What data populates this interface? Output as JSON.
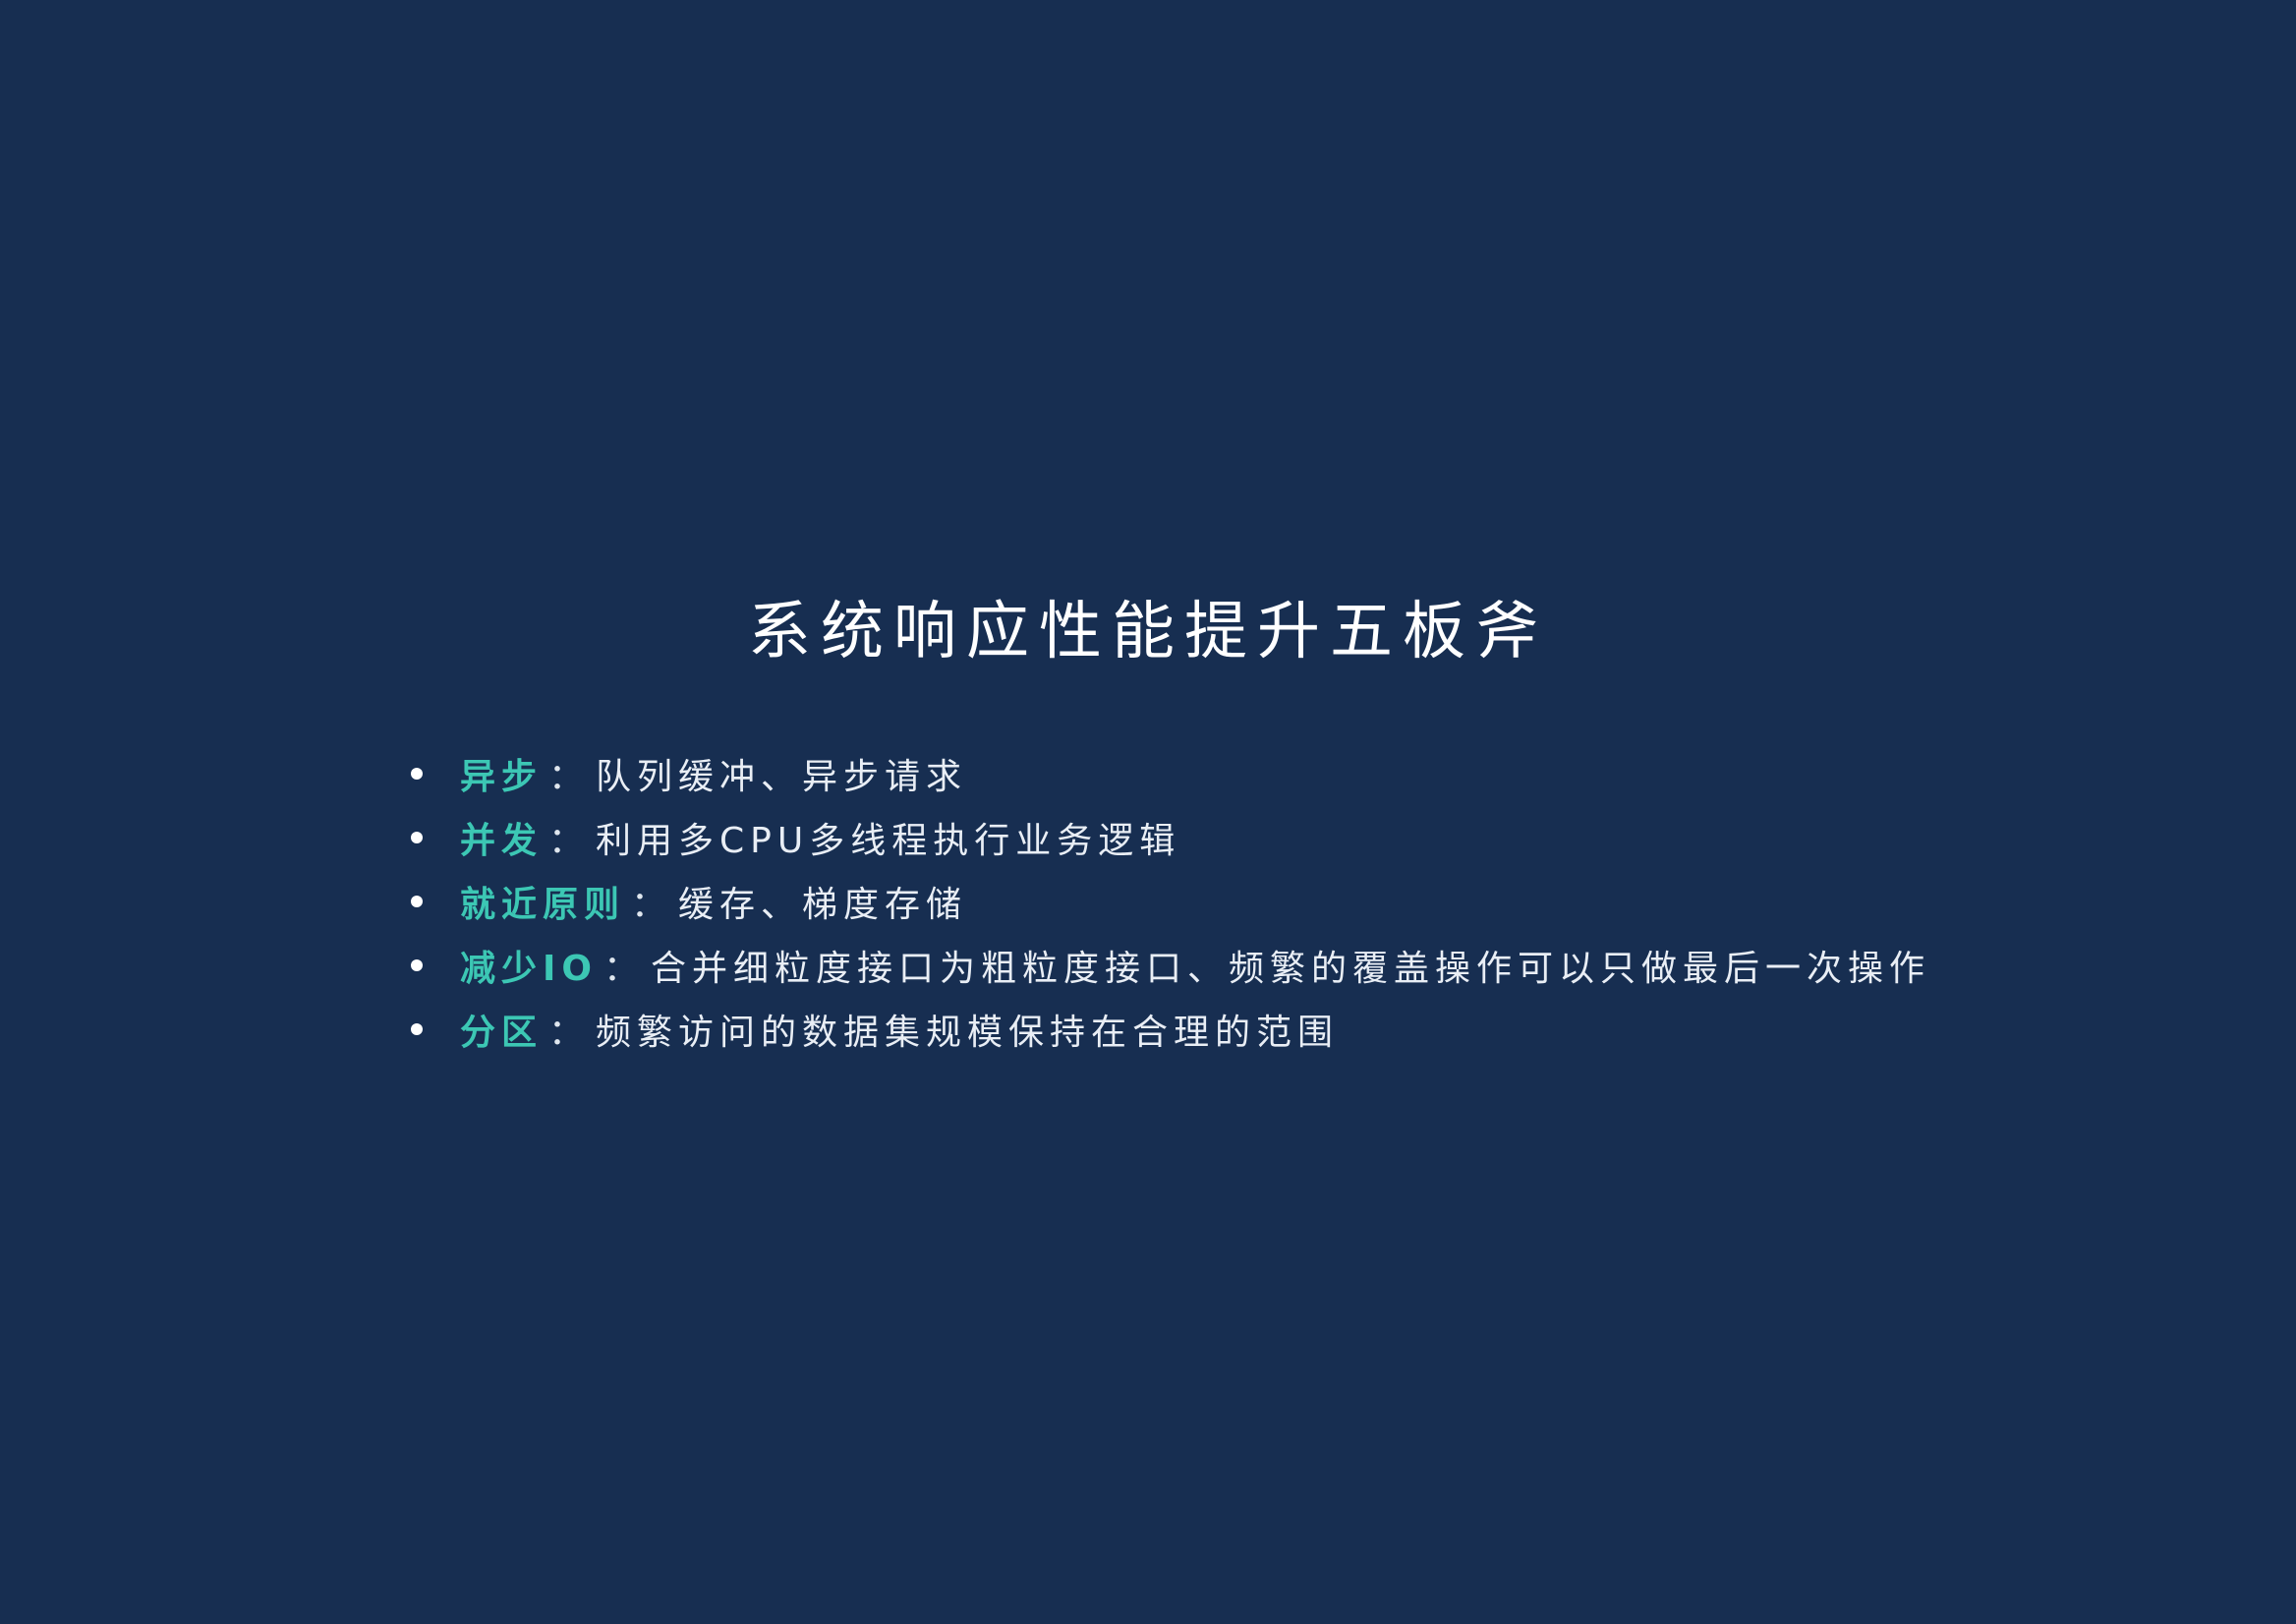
{
  "slide": {
    "title": "系统响应性能提升五板斧",
    "items": [
      {
        "keyword": "异步",
        "separator": "：",
        "description": "队列缓冲、异步请求"
      },
      {
        "keyword": "并发",
        "separator": "：",
        "description": "利用多CPU多线程执行业务逻辑"
      },
      {
        "keyword": "就近原则",
        "separator": "：",
        "description": "缓存、梯度存储"
      },
      {
        "keyword": "减少IO",
        "separator": "：",
        "description": "合并细粒度接口为粗粒度接口、频繁的覆盖操作可以只做最后一次操作"
      },
      {
        "keyword": "分区",
        "separator": "：",
        "description": "频繁访问的数据集规模保持在合理的范围"
      }
    ]
  },
  "colors": {
    "background": "#172e51",
    "accent": "#3cc7b4",
    "text": "#e9eef5"
  }
}
